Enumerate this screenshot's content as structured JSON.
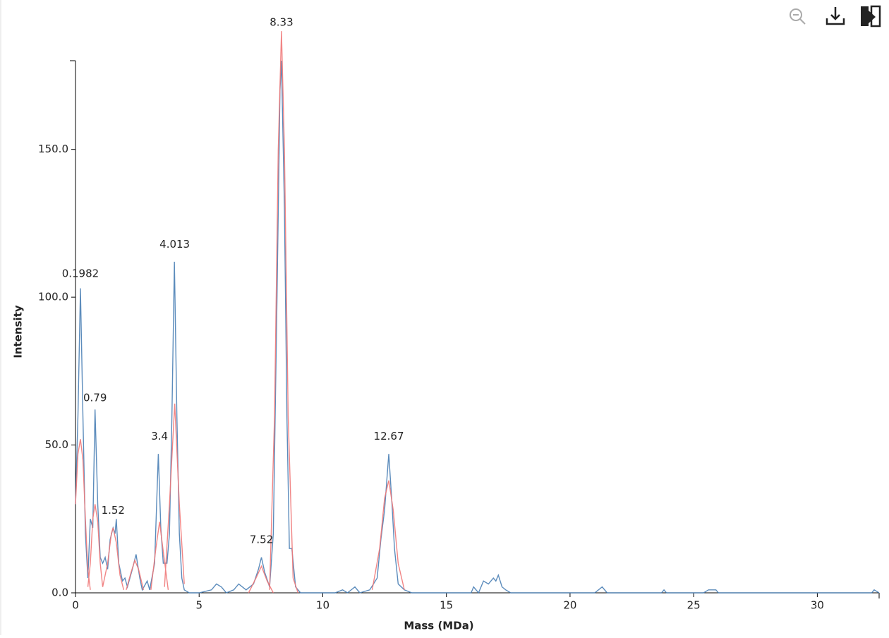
{
  "chart_data": {
    "type": "line",
    "xlabel": "Mass (MDa)",
    "ylabel": "Intensity",
    "xlim": [
      0,
      32.5
    ],
    "ylim": [
      0,
      180
    ],
    "xticks": [
      0,
      5,
      10,
      15,
      20,
      25,
      30
    ],
    "yticks": [
      {
        "value": 0,
        "label": "0.0"
      },
      {
        "value": 50,
        "label": "50.0"
      },
      {
        "value": 100,
        "label": "100.0"
      },
      {
        "value": 150,
        "label": "150.0"
      }
    ],
    "series": [
      {
        "color": "#4a7fb5",
        "x": [
          0,
          0.1,
          0.2,
          0.3,
          0.4,
          0.5,
          0.6,
          0.7,
          0.79,
          0.9,
          1.0,
          1.1,
          1.2,
          1.3,
          1.4,
          1.52,
          1.6,
          1.65,
          1.75,
          1.9,
          2.0,
          2.1,
          2.3,
          2.45,
          2.6,
          2.7,
          2.9,
          3.0,
          3.2,
          3.35,
          3.45,
          3.55,
          3.7,
          3.8,
          3.9,
          4.0,
          4.1,
          4.2,
          4.3,
          4.4,
          4.6,
          5.0,
          5.5,
          5.7,
          5.9,
          6.1,
          6.4,
          6.6,
          6.9,
          7.2,
          7.4,
          7.52,
          7.65,
          7.85,
          8.0,
          8.15,
          8.27,
          8.33,
          8.45,
          8.55,
          8.65,
          8.75,
          8.9,
          9.1,
          10.5,
          10.8,
          11.0,
          11.3,
          11.5,
          11.9,
          12.2,
          12.35,
          12.5,
          12.67,
          12.8,
          12.9,
          13.05,
          13.3,
          13.6,
          16.0,
          16.1,
          16.3,
          16.5,
          16.7,
          16.9,
          17.0,
          17.1,
          17.25,
          17.4,
          17.6,
          21.0,
          21.3,
          21.5,
          23.7,
          23.8,
          23.9,
          25.4,
          25.6,
          25.9,
          26.0,
          32.2,
          32.3,
          32.5
        ],
        "values": [
          30,
          60,
          103,
          60,
          20,
          5,
          25,
          22,
          62,
          30,
          12,
          10,
          12,
          8,
          18,
          22,
          20,
          25,
          10,
          4,
          5,
          2,
          8,
          13,
          5,
          1,
          4,
          1,
          10,
          47,
          22,
          10,
          10,
          20,
          60,
          112,
          60,
          20,
          5,
          1,
          0,
          0,
          1,
          3,
          2,
          0,
          1,
          3,
          1,
          3,
          8,
          12,
          7,
          2,
          20,
          100,
          170,
          180,
          130,
          60,
          15,
          15,
          2,
          0,
          0,
          1,
          0,
          2,
          0,
          1,
          5,
          18,
          28,
          47,
          30,
          15,
          3,
          1,
          0,
          0,
          2,
          0,
          4,
          3,
          5,
          4,
          6,
          2,
          1,
          0,
          0,
          2,
          0,
          0,
          1,
          0,
          0,
          1,
          1,
          0,
          0,
          1,
          0
        ]
      },
      {
        "color": "#f07878",
        "x": [
          0,
          0.1,
          0.2,
          0.3,
          0.4,
          0.5,
          0.6,
          null,
          0.5,
          0.6,
          0.7,
          0.79,
          0.9,
          1.0,
          1.1,
          null,
          1.1,
          1.3,
          1.45,
          1.52,
          1.65,
          1.8,
          1.95,
          null,
          2.05,
          2.25,
          2.4,
          2.55,
          2.75,
          null,
          3.05,
          3.25,
          3.4,
          3.55,
          3.75,
          null,
          3.6,
          3.8,
          4.013,
          4.2,
          4.4,
          null,
          7.0,
          7.3,
          7.52,
          7.75,
          8.0,
          null,
          7.85,
          8.05,
          8.2,
          8.33,
          8.45,
          8.6,
          8.8,
          9.0,
          null,
          12.0,
          12.3,
          12.5,
          12.67,
          12.85,
          13.05,
          13.3
        ],
        "values": [
          30,
          47,
          52,
          45,
          25,
          8,
          1,
          null,
          2,
          10,
          25,
          30,
          24,
          10,
          2,
          null,
          2,
          10,
          20,
          22,
          17,
          6,
          1,
          null,
          1,
          7,
          11,
          8,
          1,
          null,
          1,
          15,
          24,
          14,
          1,
          null,
          2,
          30,
          64,
          30,
          3,
          null,
          0,
          5,
          9,
          4,
          0,
          null,
          1,
          60,
          150,
          190,
          150,
          60,
          5,
          0,
          null,
          1,
          15,
          32,
          38,
          28,
          10,
          1
        ]
      }
    ],
    "annotations": {
      "x": [
        0.1982,
        0.79,
        1.52,
        3.4,
        4.013,
        7.52,
        8.33,
        12.67
      ],
      "y": [
        105,
        63,
        25,
        50,
        115,
        15,
        190,
        50
      ]
    }
  }
}
